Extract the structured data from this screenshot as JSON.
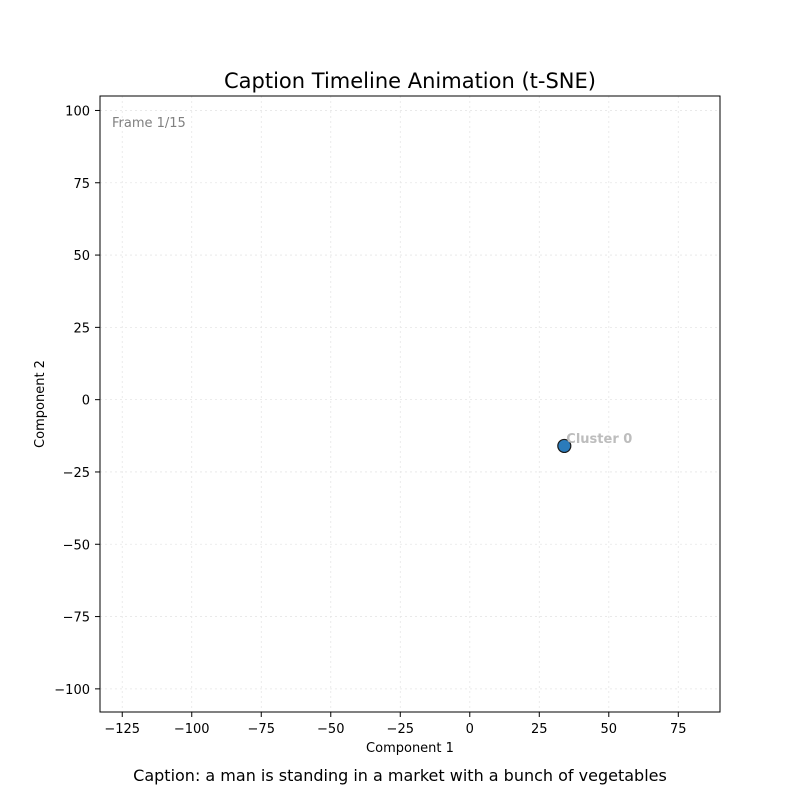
{
  "chart_data": {
    "type": "scatter",
    "title": "Caption Timeline Animation (t-SNE)",
    "xlabel": "Component 1",
    "ylabel": "Component 2",
    "xlim": [
      -133,
      90
    ],
    "ylim": [
      -108,
      105
    ],
    "xticks": [
      -125,
      -100,
      -75,
      -50,
      -25,
      0,
      25,
      50,
      75
    ],
    "yticks": [
      100,
      75,
      50,
      25,
      0,
      -25,
      -50,
      -75,
      -100
    ],
    "grid": true,
    "frame_label": "Frame 1/15",
    "points": [
      {
        "x": 34,
        "y": -16,
        "label": "Cluster 0",
        "color": "#2b7bba"
      }
    ]
  },
  "caption": "Caption: a man is standing in a market with a bunch of vegetables"
}
